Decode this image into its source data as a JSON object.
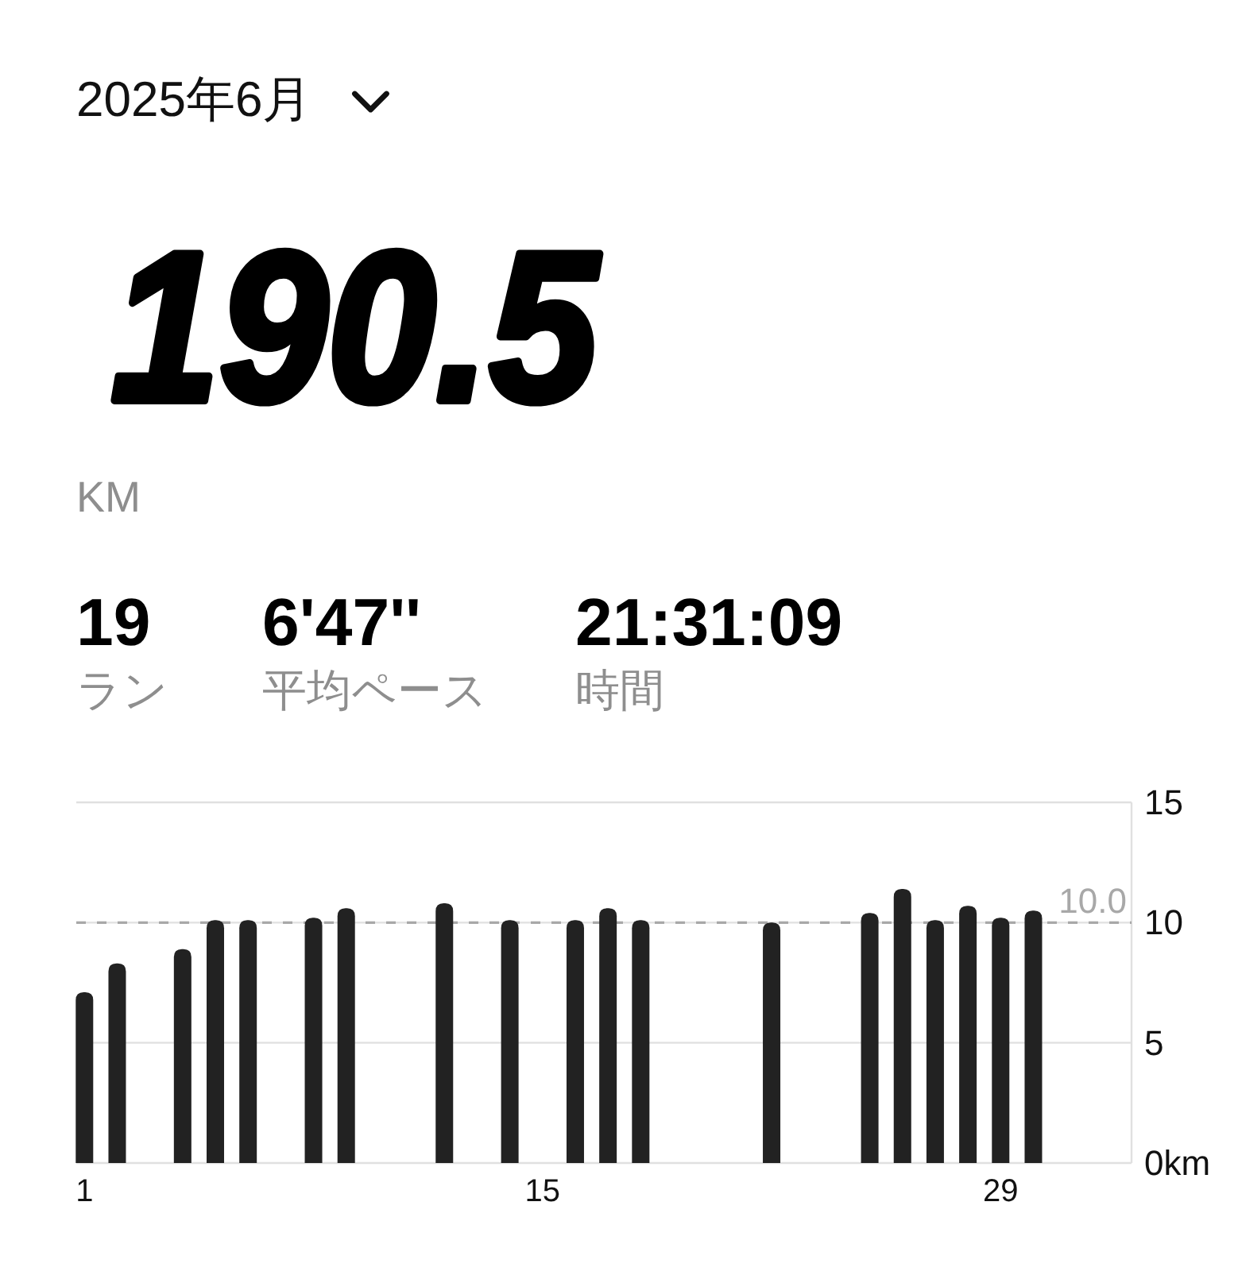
{
  "chart_data": {
    "type": "bar",
    "title": "2025年6月",
    "annotations": [
      "190.5",
      "KM",
      "19",
      "ラン",
      "6'47''",
      "平均ペース",
      "21:31:09",
      "時間"
    ],
    "categories": [
      "1",
      null,
      null,
      null,
      null,
      null,
      null,
      null,
      null,
      null,
      null,
      null,
      null,
      null,
      "15",
      null,
      null,
      null,
      null,
      null,
      null,
      null,
      null,
      null,
      null,
      null,
      null,
      null,
      "29",
      null
    ],
    "values": [
      7.1,
      8.3,
      null,
      8.9,
      10.1,
      10.1,
      null,
      10.2,
      10.6,
      null,
      null,
      10.8,
      null,
      10.1,
      null,
      10.1,
      10.6,
      10.1,
      null,
      null,
      null,
      10.0,
      null,
      null,
      10.4,
      11.4,
      10.1,
      10.7,
      10.2,
      10.5
    ],
    "color": "#222222",
    "ylim": [
      0,
      15
    ],
    "yticks": [
      {
        "value": 0,
        "label": "0km"
      },
      5,
      10,
      15
    ],
    "grid": "y",
    "ref_lines": [
      {
        "axis": "y",
        "value": 10.0,
        "label": "10.0",
        "line_style": "dashed",
        "color": "#a8a8a8"
      }
    ]
  }
}
